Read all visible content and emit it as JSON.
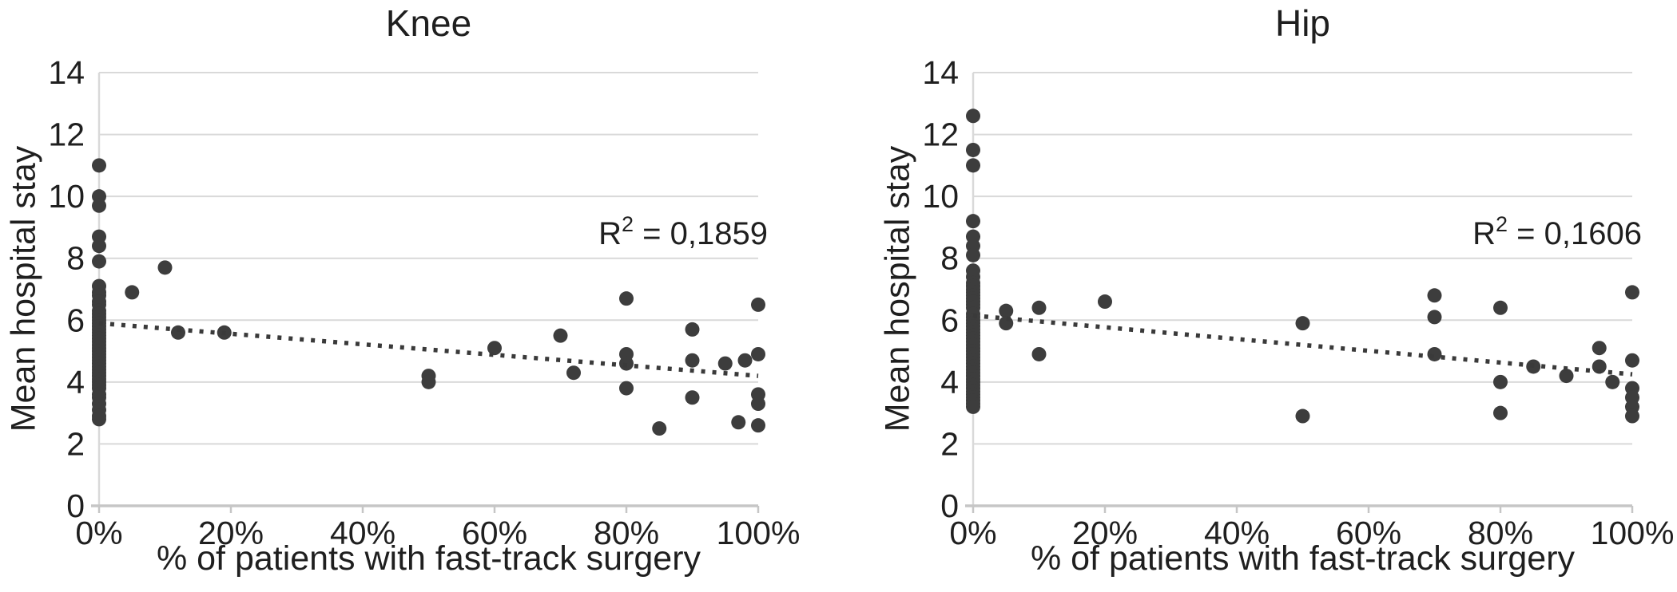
{
  "colors": {
    "background": "#ffffff",
    "point": "#3d3d3d",
    "trendline": "#3a3a3a",
    "gridline": "#d9d9d9",
    "axis_line": "#c6c6c6",
    "text": "#1f1f1f"
  },
  "chart_data": [
    {
      "type": "scatter",
      "title": "Knee",
      "xlabel": "% of patients with fast-track surgery",
      "ylabel": "Mean hospital stay",
      "r2_annotation": {
        "base": "R",
        "sup": "2",
        "rest": " = 0,1859"
      },
      "xlim": [
        0,
        100
      ],
      "ylim": [
        0,
        14
      ],
      "x_tick_positions": [
        0,
        20,
        40,
        60,
        80,
        100
      ],
      "x_tick_labels": [
        "0%",
        "20%",
        "40%",
        "60%",
        "80%",
        "100%"
      ],
      "y_tick_positions": [
        0,
        2,
        4,
        6,
        8,
        10,
        12,
        14
      ],
      "y_tick_labels": [
        "0",
        "2",
        "4",
        "6",
        "8",
        "10",
        "12",
        "14"
      ],
      "grid": true,
      "legend": false,
      "trendline": {
        "style": "dotted",
        "x_start": 0,
        "y_start": 5.9,
        "x_end": 100,
        "y_end": 4.2
      },
      "points": [
        [
          0,
          11.0
        ],
        [
          0,
          10.0
        ],
        [
          0,
          9.7
        ],
        [
          0,
          8.7
        ],
        [
          0,
          8.4
        ],
        [
          0,
          7.9
        ],
        [
          0,
          7.1
        ],
        [
          0,
          6.9
        ],
        [
          0,
          6.8
        ],
        [
          0,
          6.6
        ],
        [
          0,
          6.5
        ],
        [
          0,
          6.3
        ],
        [
          0,
          6.2
        ],
        [
          0,
          6.1
        ],
        [
          0,
          6.0
        ],
        [
          0,
          5.9
        ],
        [
          0,
          5.8
        ],
        [
          0,
          5.7
        ],
        [
          0,
          5.6
        ],
        [
          0,
          5.5
        ],
        [
          0,
          5.4
        ],
        [
          0,
          5.3
        ],
        [
          0,
          5.2
        ],
        [
          0,
          5.1
        ],
        [
          0,
          5.0
        ],
        [
          0,
          4.9
        ],
        [
          0,
          4.8
        ],
        [
          0,
          4.7
        ],
        [
          0,
          4.6
        ],
        [
          0,
          4.5
        ],
        [
          0,
          4.4
        ],
        [
          0,
          4.3
        ],
        [
          0,
          4.2
        ],
        [
          0,
          4.1
        ],
        [
          0,
          4.0
        ],
        [
          0,
          3.9
        ],
        [
          0,
          3.8
        ],
        [
          0,
          3.6
        ],
        [
          0,
          3.5
        ],
        [
          0,
          3.3
        ],
        [
          0,
          3.1
        ],
        [
          0,
          2.9
        ],
        [
          0,
          2.8
        ],
        [
          5,
          6.9
        ],
        [
          10,
          7.7
        ],
        [
          12,
          5.6
        ],
        [
          19,
          5.6
        ],
        [
          50,
          4.2
        ],
        [
          50,
          4.0
        ],
        [
          60,
          5.1
        ],
        [
          70,
          5.5
        ],
        [
          72,
          4.3
        ],
        [
          80,
          6.7
        ],
        [
          80,
          4.9
        ],
        [
          80,
          4.6
        ],
        [
          80,
          3.8
        ],
        [
          85,
          2.5
        ],
        [
          90,
          5.7
        ],
        [
          90,
          4.7
        ],
        [
          90,
          3.5
        ],
        [
          95,
          4.6
        ],
        [
          97,
          2.7
        ],
        [
          98,
          4.7
        ],
        [
          100,
          6.5
        ],
        [
          100,
          4.9
        ],
        [
          100,
          3.6
        ],
        [
          100,
          3.3
        ],
        [
          100,
          2.6
        ]
      ]
    },
    {
      "type": "scatter",
      "title": "Hip",
      "xlabel": "% of patients with fast-track surgery",
      "ylabel": "Mean hospital stay",
      "r2_annotation": {
        "base": "R",
        "sup": "2",
        "rest": " = 0,1606"
      },
      "xlim": [
        0,
        100
      ],
      "ylim": [
        0,
        14
      ],
      "x_tick_positions": [
        0,
        20,
        40,
        60,
        80,
        100
      ],
      "x_tick_labels": [
        "0%",
        "20%",
        "40%",
        "60%",
        "80%",
        "100%"
      ],
      "y_tick_positions": [
        0,
        2,
        4,
        6,
        8,
        10,
        12,
        14
      ],
      "y_tick_labels": [
        "0",
        "2",
        "4",
        "6",
        "8",
        "10",
        "12",
        "14"
      ],
      "grid": true,
      "legend": false,
      "trendline": {
        "style": "dotted",
        "x_start": 0,
        "y_start": 6.15,
        "x_end": 100,
        "y_end": 4.25
      },
      "points": [
        [
          0,
          12.6
        ],
        [
          0,
          11.5
        ],
        [
          0,
          11.0
        ],
        [
          0,
          9.2
        ],
        [
          0,
          8.7
        ],
        [
          0,
          8.4
        ],
        [
          0,
          8.1
        ],
        [
          0,
          7.6
        ],
        [
          0,
          7.4
        ],
        [
          0,
          7.2
        ],
        [
          0,
          7.1
        ],
        [
          0,
          7.0
        ],
        [
          0,
          6.9
        ],
        [
          0,
          6.8
        ],
        [
          0,
          6.7
        ],
        [
          0,
          6.6
        ],
        [
          0,
          6.5
        ],
        [
          0,
          6.4
        ],
        [
          0,
          6.2
        ],
        [
          0,
          6.1
        ],
        [
          0,
          6.0
        ],
        [
          0,
          5.9
        ],
        [
          0,
          5.8
        ],
        [
          0,
          5.7
        ],
        [
          0,
          5.6
        ],
        [
          0,
          5.5
        ],
        [
          0,
          5.4
        ],
        [
          0,
          5.3
        ],
        [
          0,
          5.2
        ],
        [
          0,
          5.1
        ],
        [
          0,
          5.0
        ],
        [
          0,
          4.9
        ],
        [
          0,
          4.8
        ],
        [
          0,
          4.7
        ],
        [
          0,
          4.6
        ],
        [
          0,
          4.5
        ],
        [
          0,
          4.4
        ],
        [
          0,
          4.3
        ],
        [
          0,
          4.2
        ],
        [
          0,
          4.1
        ],
        [
          0,
          4.0
        ],
        [
          0,
          3.9
        ],
        [
          0,
          3.8
        ],
        [
          0,
          3.7
        ],
        [
          0,
          3.6
        ],
        [
          0,
          3.5
        ],
        [
          0,
          3.4
        ],
        [
          0,
          3.3
        ],
        [
          0,
          3.2
        ],
        [
          5,
          6.3
        ],
        [
          5,
          5.9
        ],
        [
          10,
          6.4
        ],
        [
          10,
          4.9
        ],
        [
          20,
          6.6
        ],
        [
          50,
          5.9
        ],
        [
          50,
          2.9
        ],
        [
          70,
          6.8
        ],
        [
          70,
          6.1
        ],
        [
          70,
          4.9
        ],
        [
          80,
          6.4
        ],
        [
          80,
          4.0
        ],
        [
          80,
          3.0
        ],
        [
          85,
          4.5
        ],
        [
          90,
          4.2
        ],
        [
          95,
          5.1
        ],
        [
          95,
          4.5
        ],
        [
          97,
          4.0
        ],
        [
          100,
          6.9
        ],
        [
          100,
          4.7
        ],
        [
          100,
          3.8
        ],
        [
          100,
          3.5
        ],
        [
          100,
          3.2
        ],
        [
          100,
          2.9
        ]
      ]
    }
  ]
}
